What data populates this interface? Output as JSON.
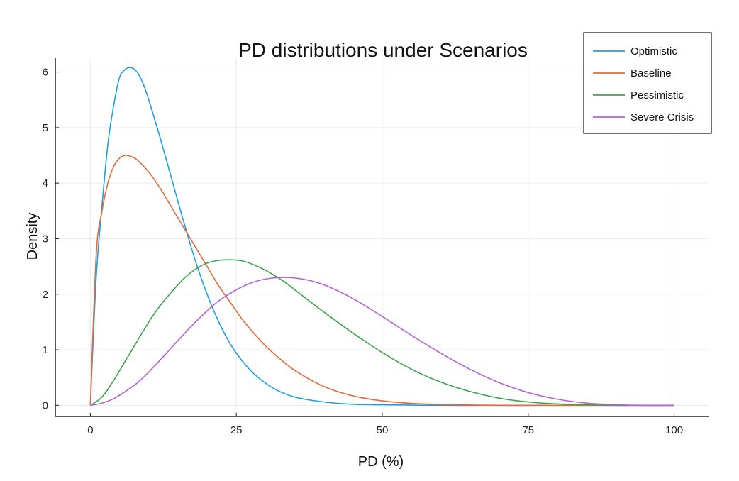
{
  "chart_data": {
    "type": "line",
    "title": "PD distributions under Scenarios",
    "xlabel": "PD (%)",
    "ylabel": "Density",
    "xlim": [
      -6,
      106
    ],
    "ylim": [
      -0.2,
      6.25
    ],
    "x_ticks": [
      0,
      25,
      50,
      75,
      100
    ],
    "y_ticks": [
      0,
      1,
      2,
      3,
      4,
      5,
      6
    ],
    "grid": true,
    "legend_position": "top-right",
    "series": [
      {
        "name": "Optimistic",
        "color": "#1e9ee6",
        "x": [
          0,
          1,
          2,
          3,
          4,
          5,
          6,
          7,
          8,
          9,
          10,
          12,
          14,
          16,
          18,
          20,
          22,
          24,
          26,
          28,
          30,
          32,
          35,
          40,
          45,
          50,
          60,
          70,
          80,
          90,
          100
        ],
        "y": [
          0,
          2.3,
          3.6,
          4.7,
          5.4,
          5.9,
          6.05,
          6.08,
          6.0,
          5.8,
          5.5,
          4.8,
          4.05,
          3.3,
          2.6,
          2.0,
          1.5,
          1.1,
          0.8,
          0.57,
          0.4,
          0.27,
          0.15,
          0.06,
          0.02,
          0.01,
          0,
          0,
          0,
          0,
          0
        ]
      },
      {
        "name": "Baseline",
        "color": "#e36b3a",
        "x": [
          0,
          1,
          2,
          3,
          4,
          5,
          6,
          7,
          8,
          10,
          12,
          14,
          16,
          18,
          20,
          22,
          24,
          26,
          28,
          30,
          32,
          35,
          40,
          45,
          50,
          55,
          60,
          70,
          80,
          90,
          100
        ],
        "y": [
          0,
          2.7,
          3.5,
          4.0,
          4.3,
          4.45,
          4.5,
          4.48,
          4.42,
          4.2,
          3.9,
          3.55,
          3.2,
          2.85,
          2.5,
          2.15,
          1.85,
          1.55,
          1.3,
          1.07,
          0.88,
          0.63,
          0.34,
          0.17,
          0.08,
          0.035,
          0.015,
          0,
          0,
          0,
          0
        ]
      },
      {
        "name": "Pessimistic",
        "color": "#3ca44c",
        "x": [
          0,
          2,
          4,
          6,
          8,
          10,
          12,
          14,
          16,
          18,
          20,
          22,
          24,
          26,
          28,
          30,
          33,
          36,
          40,
          45,
          50,
          55,
          60,
          65,
          70,
          75,
          80,
          85,
          90,
          95,
          100
        ],
        "y": [
          0,
          0.15,
          0.45,
          0.8,
          1.15,
          1.5,
          1.8,
          2.05,
          2.28,
          2.45,
          2.56,
          2.61,
          2.62,
          2.6,
          2.53,
          2.43,
          2.24,
          2.0,
          1.68,
          1.3,
          0.95,
          0.65,
          0.42,
          0.25,
          0.13,
          0.06,
          0.025,
          0.01,
          0,
          0,
          0
        ]
      },
      {
        "name": "Severe Crisis",
        "color": "#b561d6",
        "x": [
          0,
          2,
          4,
          6,
          8,
          10,
          12,
          14,
          16,
          18,
          20,
          22,
          25,
          28,
          31,
          34,
          37,
          40,
          43,
          46,
          50,
          55,
          60,
          65,
          70,
          75,
          80,
          85,
          90,
          95,
          100
        ],
        "y": [
          0,
          0.04,
          0.12,
          0.25,
          0.4,
          0.6,
          0.82,
          1.05,
          1.28,
          1.5,
          1.7,
          1.88,
          2.08,
          2.22,
          2.29,
          2.3,
          2.26,
          2.17,
          2.03,
          1.86,
          1.6,
          1.26,
          0.94,
          0.65,
          0.41,
          0.23,
          0.11,
          0.04,
          0.01,
          0,
          0
        ]
      }
    ]
  }
}
